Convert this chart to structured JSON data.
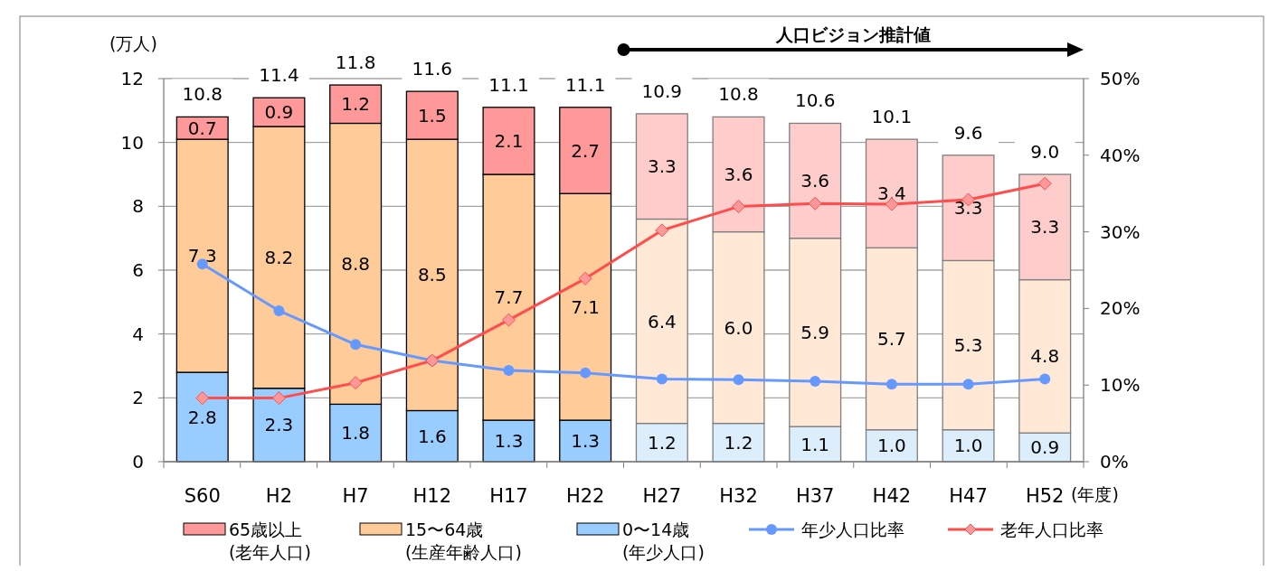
{
  "chart_data": {
    "type": "bar",
    "stacked": true,
    "ylabel": "(万人)",
    "xlabel": "(年度)",
    "categories": [
      "S60",
      "H2",
      "H7",
      "H12",
      "H17",
      "H22",
      "H27",
      "H32",
      "H37",
      "H42",
      "H47",
      "H52"
    ],
    "series": [
      {
        "name": "0〜14歳\n(年少人口)",
        "color": "#99ccff",
        "colors": [
          "#99ccff",
          "#99ccff",
          "#99ccff",
          "#99ccff",
          "#99ccff",
          "#99ccff",
          "#dceefc",
          "#dceefc",
          "#dceefc",
          "#dceefc",
          "#dceefc",
          "#dceefc"
        ],
        "values": [
          2.8,
          2.3,
          1.8,
          1.6,
          1.3,
          1.3,
          1.2,
          1.2,
          1.1,
          1.0,
          1.0,
          0.9
        ],
        "value_labels": [
          "2.8",
          "2.3",
          "1.8",
          "1.6",
          "1.3",
          "1.3",
          "1.2",
          "1.2",
          "1.1",
          "1.0",
          "1.0",
          "0.9"
        ]
      },
      {
        "name": "15〜64歳\n(生産年齢人口)",
        "color": "#ffcc99",
        "colors": [
          "#ffcc99",
          "#ffcc99",
          "#ffcc99",
          "#ffcc99",
          "#ffcc99",
          "#ffcc99",
          "#ffe8d6",
          "#ffe8d6",
          "#ffe8d6",
          "#ffe8d6",
          "#ffe8d6",
          "#ffe8d6"
        ],
        "values": [
          7.3,
          8.2,
          8.8,
          8.5,
          7.7,
          7.1,
          6.4,
          6.0,
          5.9,
          5.7,
          5.3,
          4.8
        ],
        "value_labels": [
          "7.3",
          "8.2",
          "8.8",
          "8.5",
          "7.7",
          "7.1",
          "6.4",
          "6.0",
          "5.9",
          "5.7",
          "5.3",
          "4.8"
        ]
      },
      {
        "name": "65歳以上\n(老年人口)",
        "color": "#ff9999",
        "colors": [
          "#ff9999",
          "#ff9999",
          "#ff9999",
          "#ff9999",
          "#ff9999",
          "#ff9999",
          "#ffcccc",
          "#ffcccc",
          "#ffcccc",
          "#ffcccc",
          "#ffcccc",
          "#ffcccc"
        ],
        "values": [
          0.7,
          0.9,
          1.2,
          1.5,
          2.1,
          2.7,
          3.3,
          3.6,
          3.6,
          3.4,
          3.3,
          3.3
        ],
        "value_labels": [
          "0.7",
          "0.9",
          "1.2",
          "1.5",
          "2.1",
          "2.7",
          "3.3",
          "3.6",
          "3.6",
          "3.4",
          "3.3",
          "3.3"
        ]
      },
      {
        "name": "年少人口比率",
        "type": "line",
        "axis": "y2",
        "marker": "circle",
        "color": "#6699ff",
        "values": [
          25.8,
          19.7,
          15.3,
          13.2,
          11.9,
          11.6,
          10.8,
          10.7,
          10.5,
          10.1,
          10.1,
          10.8
        ]
      },
      {
        "name": "老年人口比率",
        "type": "line",
        "axis": "y2",
        "marker": "diamond",
        "color": "#ff4d4d",
        "values": [
          8.3,
          8.3,
          10.3,
          13.2,
          18.5,
          23.9,
          30.2,
          33.3,
          33.7,
          33.6,
          34.2,
          36.3
        ]
      }
    ],
    "totals": [
      "10.8",
      "11.4",
      "11.8",
      "11.6",
      "11.1",
      "11.1",
      "10.9",
      "10.8",
      "10.6",
      "10.1",
      "9.6",
      "9.0"
    ],
    "ylim": [
      0,
      12
    ],
    "yticks": [
      0,
      2,
      4,
      6,
      8,
      10,
      12
    ],
    "y2lim": [
      0,
      50
    ],
    "y2ticks": [
      {
        "value": 0,
        "label": "0%"
      },
      {
        "value": 10,
        "label": "10%"
      },
      {
        "value": 20,
        "label": "20%"
      },
      {
        "value": 30,
        "label": "30%"
      },
      {
        "value": 40,
        "label": "40%"
      },
      {
        "value": 50,
        "label": "50%"
      }
    ],
    "grid": "y",
    "legend": "bottom",
    "line_style": "solid",
    "annotations": [
      "人口ビジョン推計値"
    ]
  }
}
